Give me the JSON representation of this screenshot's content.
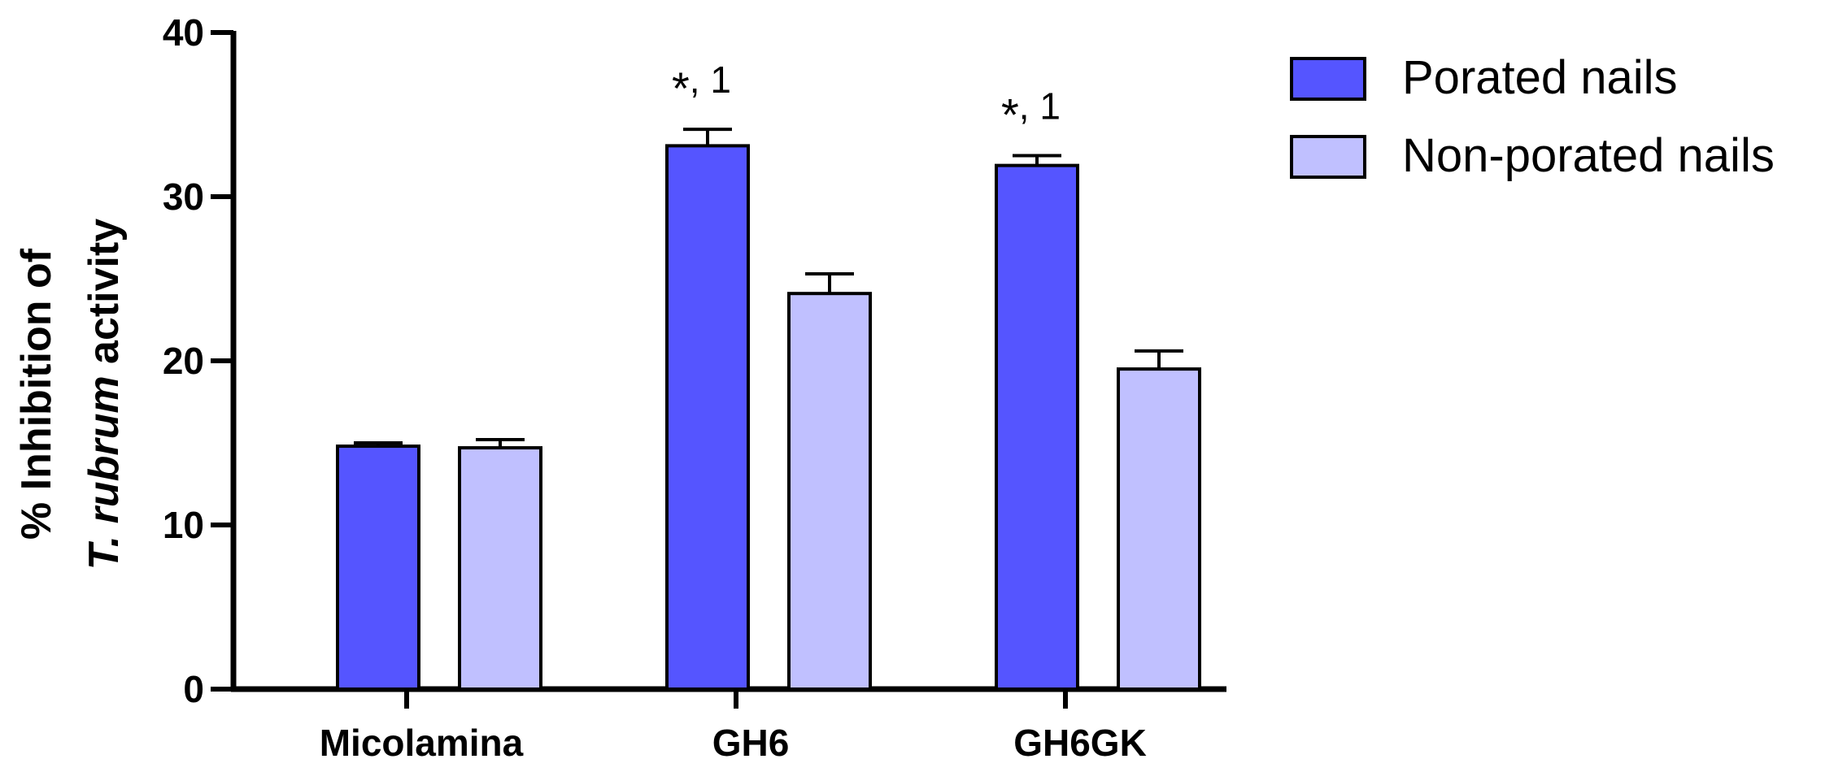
{
  "chart_data": {
    "type": "bar",
    "categories": [
      "Micolamina",
      "GH6",
      "GH6GK"
    ],
    "series": [
      {
        "name": "Porated nails",
        "values": [
          14.8,
          33.1,
          31.9
        ],
        "errors": [
          0.2,
          1.0,
          0.6
        ],
        "color": "#5555ff"
      },
      {
        "name": "Non-porated nails",
        "values": [
          14.7,
          24.1,
          19.5
        ],
        "errors": [
          0.5,
          1.2,
          1.1
        ],
        "color": "#c0c0ff"
      }
    ],
    "ylabel_line1": "% Inhibition of",
    "ylabel_line2_italic": "T. rubrum",
    "ylabel_line2_rest": " activity",
    "ylim": [
      0,
      40
    ],
    "yticks": [
      0,
      10,
      20,
      30,
      40
    ],
    "annotations": [
      {
        "category": "GH6",
        "series": 0,
        "star": "*",
        "text": ", 1"
      },
      {
        "category": "GH6GK",
        "series": 0,
        "star": "*",
        "text": ", 1"
      }
    ],
    "legend_position": "top-right",
    "grid": false
  }
}
